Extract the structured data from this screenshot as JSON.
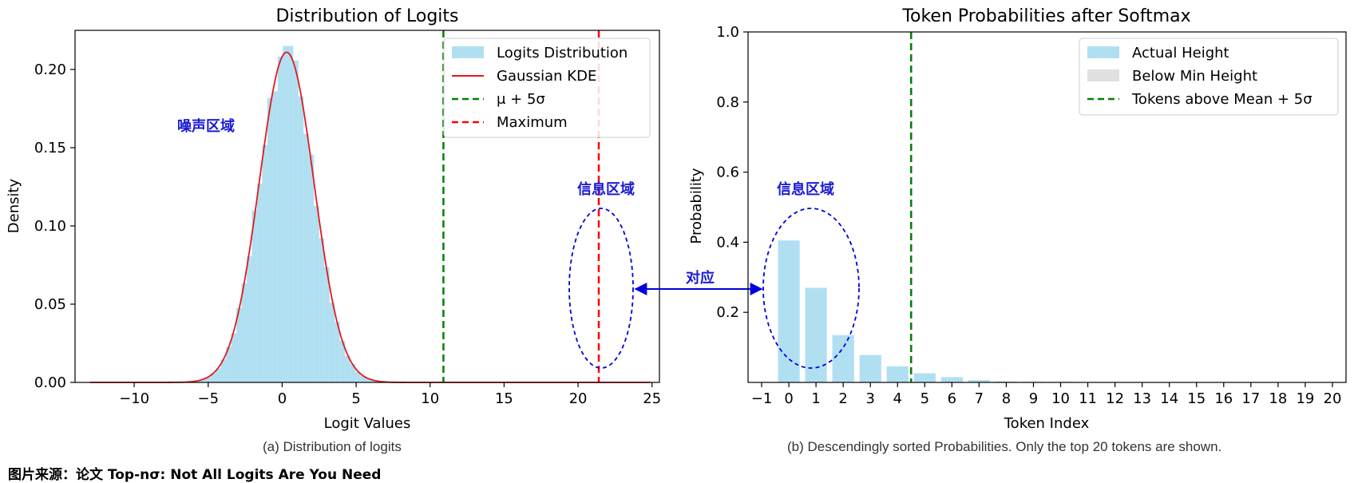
{
  "charts": {
    "left": {
      "type": "histogram",
      "title": "Distribution of Logits",
      "xlabel": "Logit Values",
      "ylabel": "Density",
      "xlim": [
        -14,
        25.5
      ],
      "ylim": [
        0,
        0.225
      ],
      "xticks": [
        -10,
        -5,
        0,
        5,
        10,
        15,
        20,
        25
      ],
      "xtick_labels": [
        "−10",
        "−5",
        "0",
        "5",
        "10",
        "15",
        "20",
        "25"
      ],
      "yticks": [
        0.0,
        0.05,
        0.1,
        0.15,
        0.2
      ],
      "ytick_labels": [
        "0.00",
        "0.05",
        "0.10",
        "0.15",
        "0.20"
      ],
      "legend": {
        "position": "top-right",
        "entries": [
          {
            "label": "Logits Distribution",
            "style": "patch",
            "color": "#87ceeb"
          },
          {
            "label": "Gaussian KDE",
            "style": "line",
            "color": "#e31a1c"
          },
          {
            "label": "μ + 5σ",
            "style": "dashed",
            "color": "#008000"
          },
          {
            "label": "Maximum",
            "style": "dashed",
            "color": "#ff0000"
          }
        ]
      },
      "mu_plus_5sigma": 10.9,
      "maximum": 21.4,
      "kde": {
        "center": 0.3,
        "sigma": 1.85,
        "peak_density": 0.211,
        "range": [
          -13,
          25
        ]
      },
      "annotations": {
        "noise_region": "噪声区域",
        "info_region": "信息区域"
      },
      "caption": "(a) Distribution of logits"
    },
    "right": {
      "type": "bar",
      "title": "Token Probabilities after Softmax",
      "xlabel": "Token Index",
      "ylabel": "Probability",
      "xlim": [
        -1.5,
        20.5
      ],
      "ylim": [
        0,
        1.0
      ],
      "xticks": [
        -1,
        0,
        1,
        2,
        3,
        4,
        5,
        6,
        7,
        8,
        9,
        10,
        11,
        12,
        13,
        14,
        15,
        16,
        17,
        18,
        19,
        20
      ],
      "xtick_labels": [
        "−1",
        "0",
        "1",
        "2",
        "3",
        "4",
        "5",
        "6",
        "7",
        "8",
        "9",
        "10",
        "11",
        "12",
        "13",
        "14",
        "15",
        "16",
        "17",
        "18",
        "19",
        "20"
      ],
      "yticks": [
        0.2,
        0.4,
        0.6,
        0.8,
        1.0
      ],
      "ytick_labels": [
        "0.2",
        "0.4",
        "0.6",
        "0.8",
        "1.0"
      ],
      "bars": {
        "x": [
          0,
          1,
          2,
          3,
          4,
          5,
          6,
          7,
          8,
          9,
          10
        ],
        "values": [
          0.405,
          0.27,
          0.135,
          0.078,
          0.046,
          0.026,
          0.015,
          0.007,
          0.003,
          0.0015,
          0.0007
        ]
      },
      "threshold_x": 4.5,
      "legend": {
        "position": "top-right",
        "entries": [
          {
            "label": "Actual Height",
            "style": "patch",
            "color": "#87ceeb"
          },
          {
            "label": "Below Min Height",
            "style": "patch",
            "color": "#d3d3d3"
          },
          {
            "label": "Tokens above Mean + 5σ",
            "style": "dashed",
            "color": "#008000"
          }
        ]
      },
      "annotations": {
        "info_region": "信息区域"
      },
      "caption": "(b) Descendingly sorted Probabilities. Only the top 20 tokens are shown."
    },
    "connector_label": "对应"
  },
  "chart_data": [
    {
      "type": "bar",
      "title": "Distribution of Logits",
      "xlabel": "Logit Values",
      "ylabel": "Density",
      "series": [
        {
          "name": "Logits Distribution",
          "kind": "histogram",
          "approx_gaussian": {
            "mean": 0.3,
            "std": 1.85,
            "peak": 0.211
          }
        },
        {
          "name": "Gaussian KDE",
          "kind": "line"
        }
      ],
      "vlines": [
        {
          "name": "μ + 5σ",
          "x": 10.9
        },
        {
          "name": "Maximum",
          "x": 21.4
        }
      ],
      "xlim": [
        -14,
        25.5
      ],
      "ylim": [
        0,
        0.225
      ]
    },
    {
      "type": "bar",
      "title": "Token Probabilities after Softmax",
      "xlabel": "Token Index",
      "ylabel": "Probability",
      "categories": [
        0,
        1,
        2,
        3,
        4,
        5,
        6,
        7,
        8,
        9,
        10
      ],
      "values": [
        0.405,
        0.27,
        0.135,
        0.078,
        0.046,
        0.026,
        0.015,
        0.007,
        0.003,
        0.0015,
        0.0007
      ],
      "vlines": [
        {
          "name": "Tokens above Mean + 5σ",
          "x": 4.5
        }
      ],
      "ylim": [
        0,
        1.0
      ]
    }
  ],
  "source": "图片来源：论文 Top-nσ: Not All Logits Are You Need"
}
